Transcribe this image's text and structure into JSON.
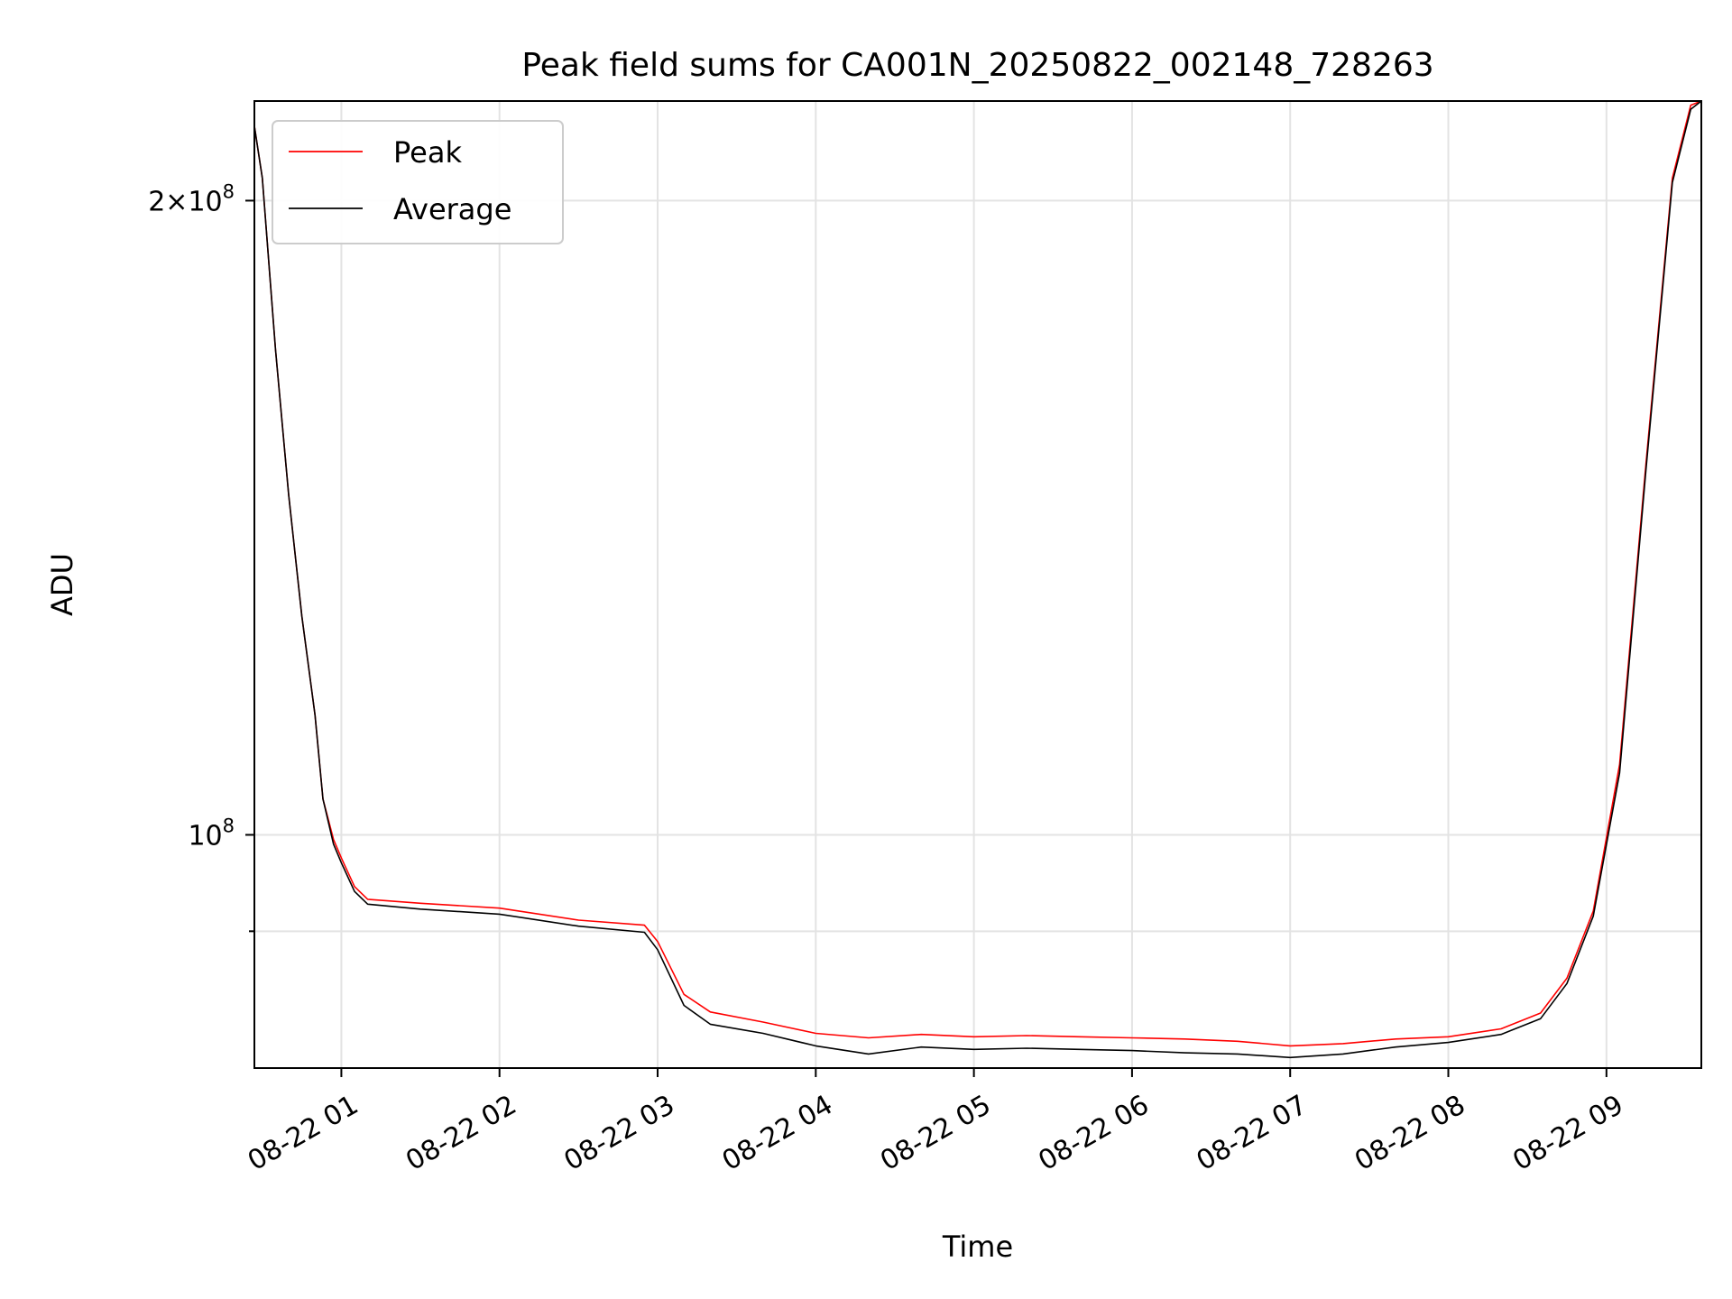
{
  "chart_data": {
    "type": "line",
    "title": "Peak field sums for CA001N_20250822_002148_728263",
    "xlabel": "Time",
    "ylabel": "ADU",
    "y_scale": "log",
    "grid": true,
    "legend_position": "top-left",
    "x_ticks": [
      "08-22 01",
      "08-22 02",
      "08-22 03",
      "08-22 04",
      "08-22 05",
      "08-22 06",
      "08-22 07",
      "08-22 08",
      "08-22 09"
    ],
    "y_ticks": [
      {
        "label_base": "2",
        "label_times": "×",
        "label_pow": "10",
        "label_exp": "8",
        "value": 200000000
      },
      {
        "label_base": "",
        "label_times": "",
        "label_pow": "10",
        "label_exp": "8",
        "value": 100000000
      }
    ],
    "xlim": [
      "2025-08-22 00:27",
      "2025-08-22 09:36"
    ],
    "ylim": [
      77500000,
      223000000
    ],
    "series": [
      {
        "name": "Peak",
        "color": "#ff0000",
        "x": [
          "2025-08-22 00:27",
          "2025-08-22 00:30",
          "2025-08-22 00:35",
          "2025-08-22 00:40",
          "2025-08-22 00:45",
          "2025-08-22 00:50",
          "2025-08-22 00:53",
          "2025-08-22 00:57",
          "2025-08-22 01:00",
          "2025-08-22 01:05",
          "2025-08-22 01:10",
          "2025-08-22 01:30",
          "2025-08-22 02:00",
          "2025-08-22 02:30",
          "2025-08-22 02:55",
          "2025-08-22 03:00",
          "2025-08-22 03:10",
          "2025-08-22 03:20",
          "2025-08-22 03:40",
          "2025-08-22 04:00",
          "2025-08-22 04:20",
          "2025-08-22 04:40",
          "2025-08-22 05:00",
          "2025-08-22 05:20",
          "2025-08-22 05:40",
          "2025-08-22 06:00",
          "2025-08-22 06:20",
          "2025-08-22 06:40",
          "2025-08-22 07:00",
          "2025-08-22 07:20",
          "2025-08-22 07:40",
          "2025-08-22 08:00",
          "2025-08-22 08:20",
          "2025-08-22 08:35",
          "2025-08-22 08:45",
          "2025-08-22 08:55",
          "2025-08-22 09:05",
          "2025-08-22 09:15",
          "2025-08-22 09:25",
          "2025-08-22 09:32",
          "2025-08-22 09:36"
        ],
        "y": [
          217000000,
          205000000,
          170000000,
          145000000,
          127000000,
          114000000,
          104000000,
          99500000,
          97500000,
          94500000,
          93200000,
          92800000,
          92300000,
          91100000,
          90600000,
          89000000,
          84000000,
          82400000,
          81500000,
          80500000,
          80100000,
          80400000,
          80200000,
          80300000,
          80200000,
          80100000,
          80000000,
          79800000,
          79400000,
          79600000,
          80000000,
          80200000,
          80900000,
          82300000,
          85500000,
          92000000,
          108000000,
          150000000,
          205000000,
          222000000,
          223000000
        ]
      },
      {
        "name": "Average",
        "color": "#000000",
        "x": [
          "2025-08-22 00:27",
          "2025-08-22 00:30",
          "2025-08-22 00:35",
          "2025-08-22 00:40",
          "2025-08-22 00:45",
          "2025-08-22 00:50",
          "2025-08-22 00:53",
          "2025-08-22 00:57",
          "2025-08-22 01:00",
          "2025-08-22 01:05",
          "2025-08-22 01:10",
          "2025-08-22 01:30",
          "2025-08-22 02:00",
          "2025-08-22 02:30",
          "2025-08-22 02:55",
          "2025-08-22 03:00",
          "2025-08-22 03:10",
          "2025-08-22 03:20",
          "2025-08-22 03:40",
          "2025-08-22 04:00",
          "2025-08-22 04:20",
          "2025-08-22 04:40",
          "2025-08-22 05:00",
          "2025-08-22 05:20",
          "2025-08-22 05:40",
          "2025-08-22 06:00",
          "2025-08-22 06:20",
          "2025-08-22 06:40",
          "2025-08-22 07:00",
          "2025-08-22 07:20",
          "2025-08-22 07:40",
          "2025-08-22 08:00",
          "2025-08-22 08:20",
          "2025-08-22 08:35",
          "2025-08-22 08:45",
          "2025-08-22 08:55",
          "2025-08-22 09:05",
          "2025-08-22 09:15",
          "2025-08-22 09:25",
          "2025-08-22 09:32",
          "2025-08-22 09:36"
        ],
        "y": [
          217000000,
          205000000,
          170000000,
          145000000,
          127000000,
          114000000,
          104000000,
          99000000,
          97000000,
          94000000,
          92700000,
          92200000,
          91700000,
          90500000,
          89900000,
          88200000,
          83000000,
          81300000,
          80500000,
          79400000,
          78700000,
          79300000,
          79100000,
          79200000,
          79100000,
          79000000,
          78800000,
          78700000,
          78400000,
          78700000,
          79300000,
          79700000,
          80400000,
          81800000,
          85000000,
          91500000,
          107000000,
          149000000,
          204000000,
          221000000,
          223000000
        ]
      }
    ]
  }
}
